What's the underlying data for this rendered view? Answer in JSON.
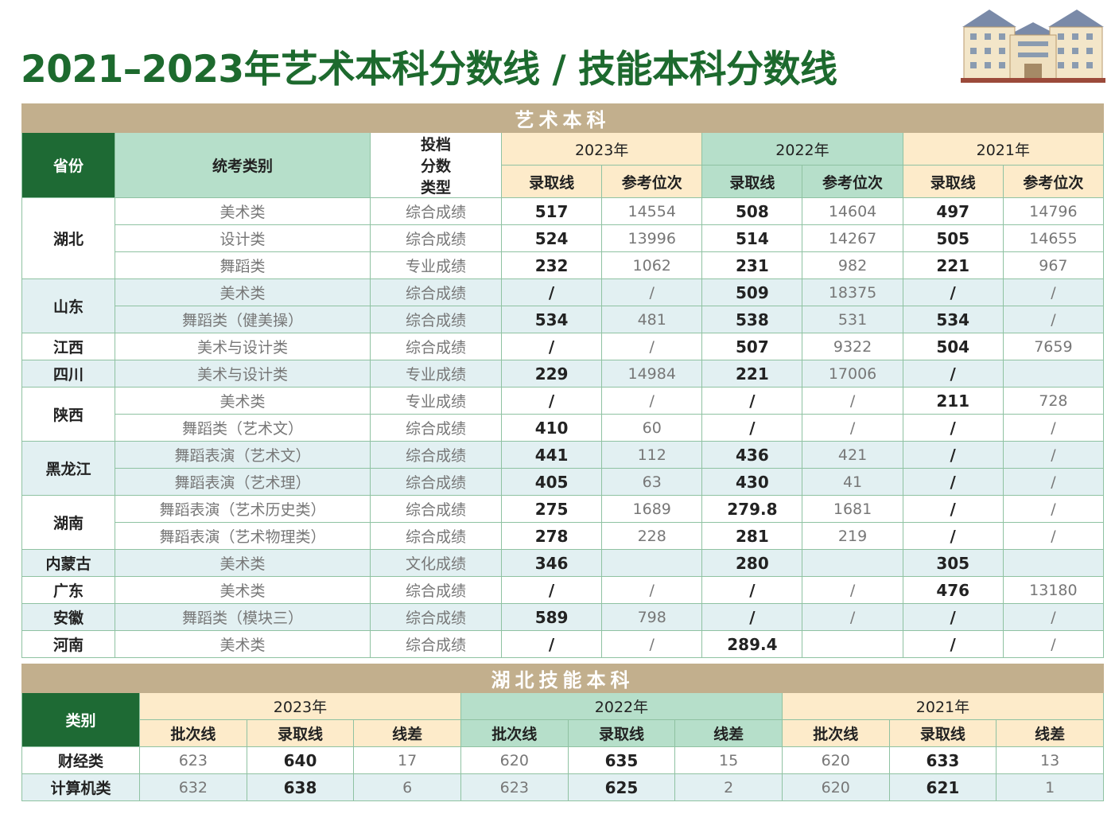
{
  "title": "2021–2023年艺术本科分数线 / 技能本科分数线",
  "art": {
    "title": "艺术本科",
    "headers": [
      "省份",
      "统考类别",
      "投档分数类型"
    ],
    "years": [
      "2023年",
      "2022年",
      "2021年"
    ],
    "subheaders": [
      "录取线",
      "参考位次",
      "录取线",
      "参考位次",
      "录取线",
      "参考位次"
    ],
    "groups": [
      {
        "province": "湖北",
        "rows": [
          [
            "美术类",
            "综合成绩",
            517,
            14554,
            508,
            14604,
            497,
            14796
          ],
          [
            "设计类",
            "综合成绩",
            524,
            13996,
            514,
            14267,
            505,
            14655
          ],
          [
            "舞蹈类",
            "专业成绩",
            232,
            1062,
            231,
            982,
            221,
            967
          ]
        ]
      },
      {
        "province": "山东",
        "rows": [
          [
            "美术类",
            "综合成绩",
            "/",
            "/",
            509,
            18375,
            "/",
            "/"
          ],
          [
            "舞蹈类（健美操）",
            "综合成绩",
            534,
            481,
            538,
            531,
            534,
            "/"
          ]
        ]
      },
      {
        "province": "江西",
        "rows": [
          [
            "美术与设计类",
            "综合成绩",
            "/",
            "/",
            507,
            9322,
            504,
            7659
          ]
        ]
      },
      {
        "province": "四川",
        "rows": [
          [
            "美术与设计类",
            "专业成绩",
            229,
            14984,
            221,
            17006,
            "/",
            null
          ]
        ]
      },
      {
        "province": "陕西",
        "rows": [
          [
            "美术类",
            "专业成绩",
            "/",
            "/",
            "/",
            "/",
            211,
            728
          ],
          [
            "舞蹈类（艺术文）",
            "综合成绩",
            410,
            60,
            "/",
            "/",
            "/",
            "/"
          ]
        ]
      },
      {
        "province": "黑龙江",
        "rows": [
          [
            "舞蹈表演（艺术文）",
            "综合成绩",
            441,
            112,
            436,
            421,
            "/",
            "/"
          ],
          [
            "舞蹈表演（艺术理）",
            "综合成绩",
            405,
            63,
            430,
            41,
            "/",
            "/"
          ]
        ]
      },
      {
        "province": "湖南",
        "rows": [
          [
            "舞蹈表演（艺术历史类）",
            "综合成绩",
            275,
            1689,
            279.8,
            1681,
            "/",
            "/"
          ],
          [
            "舞蹈表演（艺术物理类）",
            "综合成绩",
            278,
            228,
            281,
            219,
            "/",
            "/"
          ]
        ]
      },
      {
        "province": "内蒙古",
        "rows": [
          [
            "美术类",
            "文化成绩",
            346,
            null,
            280,
            null,
            305,
            null
          ]
        ]
      },
      {
        "province": "广东",
        "rows": [
          [
            "美术类",
            "综合成绩",
            "/",
            "/",
            "/",
            "/",
            476,
            13180
          ]
        ]
      },
      {
        "province": "安徽",
        "rows": [
          [
            "舞蹈类（模块三）",
            "综合成绩",
            589,
            798,
            "/",
            "/",
            "/",
            "/"
          ]
        ]
      },
      {
        "province": "河南",
        "rows": [
          [
            "美术类",
            "综合成绩",
            "/",
            "/",
            289.4,
            null,
            "/",
            "/"
          ]
        ]
      }
    ]
  },
  "skill": {
    "title": "湖北技能本科",
    "header": "类别",
    "years": [
      "2023年",
      "2022年",
      "2021年"
    ],
    "subheaders": [
      "批次线",
      "录取线",
      "线差",
      "批次线",
      "录取线",
      "线差",
      "批次线",
      "录取线",
      "线差"
    ],
    "rows": [
      [
        "财经类",
        623,
        640,
        17,
        620,
        635,
        15,
        620,
        633,
        13
      ],
      [
        "计算机类",
        632,
        638,
        6,
        623,
        625,
        2,
        620,
        621,
        1
      ]
    ]
  }
}
